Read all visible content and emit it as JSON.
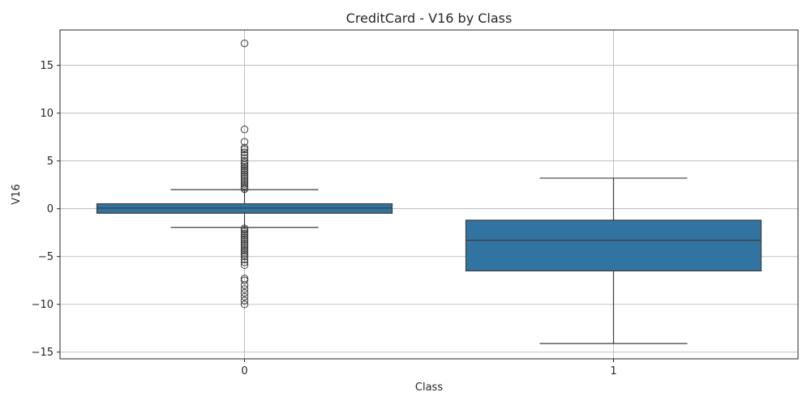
{
  "chart_data": {
    "type": "boxplot",
    "title": "CreditCard - V16 by Class",
    "xlabel": "Class",
    "ylabel": "V16",
    "categories": [
      "0",
      "1"
    ],
    "ylim": [
      -15.7,
      18.7
    ],
    "yticks": [
      -15,
      -10,
      -5,
      0,
      5,
      10,
      15
    ],
    "grid": true,
    "box_color": "#3274a1",
    "edge_color": "#3d3d3d",
    "boxes": [
      {
        "category": "0",
        "q1": -0.47,
        "median": 0.07,
        "q3": 0.52,
        "whisker_low": -1.95,
        "whisker_high": 2.0,
        "outliers": [
          17.3,
          8.3,
          7.0,
          6.4,
          6.2,
          5.9,
          5.6,
          5.3,
          5.0,
          4.8,
          4.6,
          4.4,
          4.2,
          4.0,
          3.8,
          3.6,
          3.4,
          3.2,
          3.0,
          2.8,
          2.6,
          2.4,
          2.2,
          2.05,
          -2.05,
          -2.2,
          -2.4,
          -2.6,
          -2.8,
          -3.0,
          -3.2,
          -3.4,
          -3.6,
          -3.8,
          -4.0,
          -4.2,
          -4.4,
          -4.6,
          -4.8,
          -5.0,
          -5.3,
          -5.6,
          -5.9,
          -7.3,
          -7.5,
          -8.0,
          -8.4,
          -8.8,
          -9.2,
          -9.6,
          -10.0
        ]
      },
      {
        "category": "1",
        "q1": -6.5,
        "median": -3.3,
        "q3": -1.2,
        "whisker_low": -14.1,
        "whisker_high": 3.2,
        "outliers": []
      }
    ]
  }
}
